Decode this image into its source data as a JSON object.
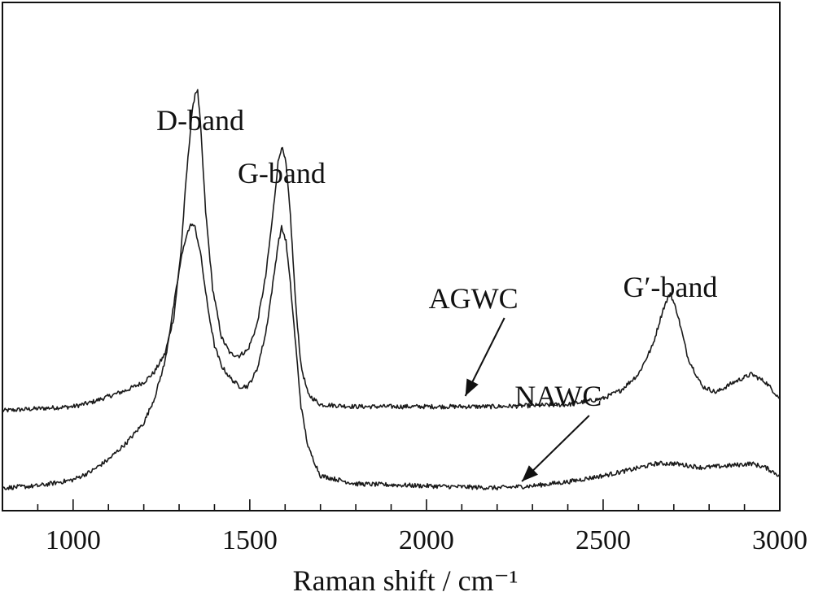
{
  "chart_data": {
    "type": "line",
    "title": "",
    "xlabel": "Raman shift / cm⁻¹",
    "ylabel": "",
    "xlim": [
      800,
      3000
    ],
    "x_ticks": [
      1000,
      1500,
      2000,
      2500,
      3000
    ],
    "x_minor_step": 100,
    "y_ticks_shown": false,
    "grid": false,
    "band_labels": [
      {
        "text": "D-band",
        "x": 1360,
        "y": 88
      },
      {
        "text": "G-band",
        "x": 1590,
        "y": 75
      },
      {
        "text": "G′-band",
        "x": 2690,
        "y": 47
      }
    ],
    "series": [
      {
        "name": "AGWC",
        "points": [
          [
            800,
            19
          ],
          [
            900,
            19.5
          ],
          [
            1000,
            20
          ],
          [
            1050,
            21
          ],
          [
            1100,
            22.5
          ],
          [
            1150,
            24
          ],
          [
            1200,
            26
          ],
          [
            1230,
            28.5
          ],
          [
            1260,
            33
          ],
          [
            1285,
            42
          ],
          [
            1305,
            58
          ],
          [
            1320,
            76
          ],
          [
            1335,
            91
          ],
          [
            1345,
            97
          ],
          [
            1352,
            98
          ],
          [
            1360,
            90
          ],
          [
            1375,
            68
          ],
          [
            1395,
            49
          ],
          [
            1420,
            37
          ],
          [
            1445,
            33
          ],
          [
            1470,
            32.5
          ],
          [
            1495,
            34
          ],
          [
            1520,
            40
          ],
          [
            1545,
            52
          ],
          [
            1565,
            67
          ],
          [
            1580,
            80
          ],
          [
            1590,
            84
          ],
          [
            1602,
            80
          ],
          [
            1615,
            67
          ],
          [
            1630,
            45
          ],
          [
            1645,
            30
          ],
          [
            1665,
            23
          ],
          [
            1700,
            20.5
          ],
          [
            1800,
            20
          ],
          [
            2000,
            20
          ],
          [
            2200,
            20
          ],
          [
            2400,
            20.5
          ],
          [
            2500,
            22
          ],
          [
            2550,
            24
          ],
          [
            2600,
            28
          ],
          [
            2640,
            35
          ],
          [
            2670,
            44
          ],
          [
            2690,
            48
          ],
          [
            2710,
            43
          ],
          [
            2740,
            32
          ],
          [
            2780,
            25
          ],
          [
            2820,
            23.5
          ],
          [
            2870,
            26
          ],
          [
            2920,
            28
          ],
          [
            2960,
            26
          ],
          [
            3000,
            22
          ]
        ]
      },
      {
        "name": "NAWC",
        "points": [
          [
            800,
            0
          ],
          [
            900,
            0.5
          ],
          [
            1000,
            2
          ],
          [
            1050,
            4
          ],
          [
            1100,
            7
          ],
          [
            1150,
            11
          ],
          [
            1200,
            16
          ],
          [
            1230,
            22
          ],
          [
            1260,
            31
          ],
          [
            1285,
            45
          ],
          [
            1305,
            56
          ],
          [
            1320,
            62
          ],
          [
            1335,
            65
          ],
          [
            1345,
            64
          ],
          [
            1360,
            58
          ],
          [
            1380,
            45
          ],
          [
            1400,
            35
          ],
          [
            1420,
            30
          ],
          [
            1445,
            27
          ],
          [
            1470,
            25
          ],
          [
            1495,
            25
          ],
          [
            1520,
            29
          ],
          [
            1545,
            38
          ],
          [
            1565,
            50
          ],
          [
            1580,
            60
          ],
          [
            1590,
            64
          ],
          [
            1602,
            61
          ],
          [
            1615,
            50
          ],
          [
            1630,
            35
          ],
          [
            1645,
            20
          ],
          [
            1665,
            10
          ],
          [
            1700,
            3
          ],
          [
            1800,
            1
          ],
          [
            2000,
            0.5
          ],
          [
            2200,
            0
          ],
          [
            2300,
            0.5
          ],
          [
            2400,
            1.5
          ],
          [
            2500,
            3
          ],
          [
            2580,
            4.5
          ],
          [
            2650,
            6
          ],
          [
            2700,
            6
          ],
          [
            2780,
            5
          ],
          [
            2860,
            5.5
          ],
          [
            2920,
            6
          ],
          [
            2960,
            5
          ],
          [
            3000,
            3
          ]
        ]
      }
    ],
    "series_labels": [
      {
        "text": "AGWC",
        "x": 2110,
        "y": 43,
        "arrow_to": [
          2110,
          21
        ]
      },
      {
        "text": "NAWC",
        "x": 2350,
        "y": 19,
        "arrow_to": [
          2270,
          0
        ]
      }
    ],
    "line_color": "#1a1a1a"
  }
}
